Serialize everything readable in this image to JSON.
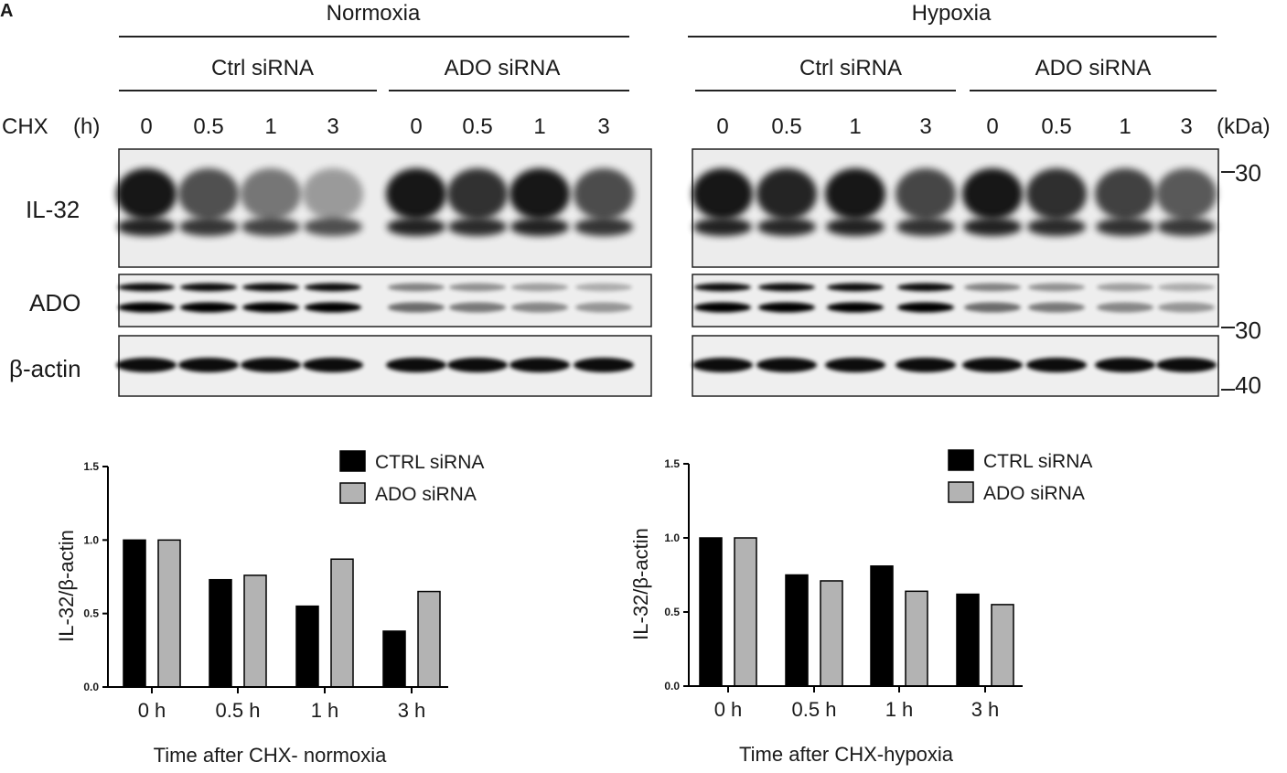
{
  "panel_label": "A",
  "blot": {
    "conditions": [
      "Normoxia",
      "Hypoxia"
    ],
    "groups": [
      "Ctrl siRNA",
      "ADO siRNA"
    ],
    "chx_label": "CHX",
    "chx_unit": "(h)",
    "timepoints": [
      "0",
      "0.5",
      "1",
      "3"
    ],
    "kda_label": "(kDa)",
    "rows": [
      "IL-32",
      "ADO",
      "β-actin"
    ],
    "markers": [
      "30",
      "30",
      "40"
    ]
  },
  "chart_data": [
    {
      "type": "bar",
      "title": "",
      "xlabel": "Time after CHX- normoxia",
      "ylabel": "IL-32/β-actin",
      "ylim": [
        0,
        1.5
      ],
      "yticks": [
        "0.0",
        "0.5",
        "1.0",
        "1.5"
      ],
      "categories": [
        "0 h",
        "0.5 h",
        "1 h",
        "3 h"
      ],
      "legend_position": "top-right",
      "series": [
        {
          "name": "CTRL siRNA",
          "values": [
            1.0,
            0.73,
            0.55,
            0.38
          ],
          "color": "#000000"
        },
        {
          "name": "ADO siRNA",
          "values": [
            1.0,
            0.76,
            0.87,
            0.65
          ],
          "color": "#b3b3b3"
        }
      ]
    },
    {
      "type": "bar",
      "title": "",
      "xlabel": "Time after CHX-hypoxia",
      "ylabel": "IL-32/β-actin",
      "ylim": [
        0,
        1.5
      ],
      "yticks": [
        "0.0",
        "0.5",
        "1.0",
        "1.5"
      ],
      "categories": [
        "0 h",
        "0.5 h",
        "1 h",
        "3 h"
      ],
      "legend_position": "top-right",
      "series": [
        {
          "name": "CTRL siRNA",
          "values": [
            1.0,
            0.75,
            0.81,
            0.62
          ],
          "color": "#000000"
        },
        {
          "name": "ADO siRNA",
          "values": [
            1.0,
            0.71,
            0.64,
            0.55
          ],
          "color": "#b3b3b3"
        }
      ]
    }
  ]
}
